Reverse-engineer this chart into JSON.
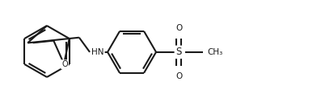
{
  "background_color": "#ffffff",
  "line_color": "#1a1a1a",
  "line_width": 1.5,
  "figsize": [
    3.97,
    1.27
  ],
  "dpi": 100,
  "xlim": [
    0,
    397
  ],
  "ylim": [
    0,
    127
  ]
}
